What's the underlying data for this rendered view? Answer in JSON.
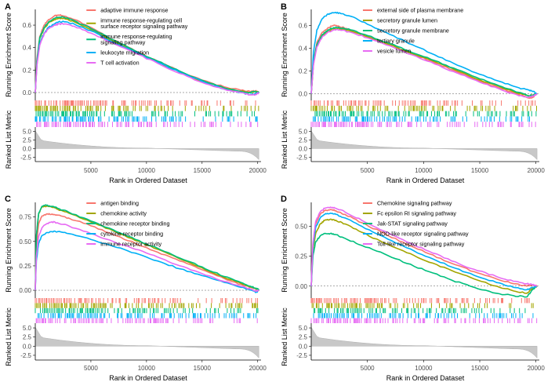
{
  "figure": {
    "colors": [
      "#F8766D",
      "#A3A500",
      "#00BF7D",
      "#00B0F6",
      "#E76BF3"
    ],
    "xlabel": "Rank in Ordered Dataset",
    "ylabel_top": "Running Enrichment Score",
    "ylabel_bottom": "Ranked List Metric",
    "x_ticks": [
      "5000",
      "10000",
      "15000",
      "20000"
    ],
    "metric_ticks": [
      "5.0",
      "2.5",
      "0.0",
      "-2.5"
    ]
  },
  "chart_data": [
    {
      "type": "line",
      "panel": "A",
      "xlim": [
        0,
        20300
      ],
      "ylim": [
        -0.07,
        0.74
      ],
      "yticks": [
        "0.0",
        "0.2",
        "0.4",
        "0.6"
      ],
      "legend_lines": [
        [
          "adaptive immune response"
        ],
        [
          "immune response-regulating cell",
          "surface receptor signaling pathway"
        ],
        [
          "immune response-regulating",
          "signaling pathway"
        ],
        [
          "leukocyte migration"
        ],
        [
          "T cell activation"
        ]
      ],
      "series": [
        {
          "name": "adaptive immune response",
          "x": [
            0,
            150,
            400,
            800,
            1200,
            1700,
            2100,
            2600,
            3500,
            5000,
            7000,
            9000,
            11000,
            13000,
            15000,
            17000,
            18500,
            19300,
            19800,
            20100
          ],
          "y": [
            0,
            0.3,
            0.5,
            0.6,
            0.65,
            0.68,
            0.69,
            0.68,
            0.65,
            0.58,
            0.47,
            0.37,
            0.28,
            0.19,
            0.11,
            0.05,
            0.02,
            0.01,
            0.015,
            0
          ]
        },
        {
          "name": "immune response-regulating cell surface receptor signaling pathway",
          "x": [
            0,
            150,
            400,
            800,
            1200,
            1700,
            2100,
            2600,
            3500,
            5000,
            7000,
            9000,
            11000,
            13000,
            15000,
            17000,
            18500,
            19300,
            19800,
            20100
          ],
          "y": [
            0,
            0.28,
            0.48,
            0.57,
            0.62,
            0.65,
            0.66,
            0.66,
            0.63,
            0.56,
            0.46,
            0.36,
            0.27,
            0.18,
            0.1,
            0.04,
            0.01,
            0.0,
            0.01,
            0
          ]
        },
        {
          "name": "immune response-regulating signaling pathway",
          "x": [
            0,
            150,
            400,
            800,
            1200,
            1700,
            2100,
            2600,
            3500,
            5000,
            7000,
            9000,
            11000,
            13000,
            15000,
            17000,
            18500,
            19300,
            19800,
            20100
          ],
          "y": [
            0,
            0.28,
            0.49,
            0.58,
            0.63,
            0.66,
            0.67,
            0.67,
            0.64,
            0.57,
            0.47,
            0.37,
            0.28,
            0.19,
            0.11,
            0.04,
            0.01,
            0.0,
            0.01,
            0
          ]
        },
        {
          "name": "leukocyte migration",
          "x": [
            0,
            150,
            400,
            800,
            1200,
            1700,
            2100,
            2600,
            3500,
            5000,
            7000,
            9000,
            11000,
            13000,
            15000,
            17000,
            18500,
            19300,
            19800,
            20100
          ],
          "y": [
            0,
            0.25,
            0.44,
            0.53,
            0.58,
            0.61,
            0.63,
            0.63,
            0.61,
            0.55,
            0.45,
            0.36,
            0.27,
            0.18,
            0.1,
            0.03,
            0.0,
            -0.02,
            -0.01,
            0
          ]
        },
        {
          "name": "T cell activation",
          "x": [
            0,
            150,
            400,
            800,
            1200,
            1700,
            2100,
            2600,
            3500,
            5000,
            7000,
            9000,
            11000,
            13000,
            15000,
            17000,
            18500,
            19300,
            19800,
            20100
          ],
          "y": [
            0,
            0.24,
            0.42,
            0.52,
            0.57,
            0.6,
            0.61,
            0.61,
            0.59,
            0.53,
            0.44,
            0.35,
            0.26,
            0.17,
            0.09,
            0.03,
            0.0,
            -0.02,
            -0.02,
            0
          ]
        }
      ]
    },
    {
      "type": "line",
      "panel": "B",
      "xlim": [
        0,
        20300
      ],
      "ylim": [
        -0.06,
        0.74
      ],
      "yticks": [
        "0.0",
        "0.2",
        "0.4",
        "0.6"
      ],
      "legend_lines": [
        [
          "external side of plasma membrane"
        ],
        [
          "secretory granule lumen"
        ],
        [
          "secretory granule membrane"
        ],
        [
          "tertiary granule"
        ],
        [
          "vesicle lumen"
        ]
      ],
      "series": [
        {
          "name": "external side of plasma membrane",
          "x": [
            0,
            200,
            500,
            1000,
            1500,
            2000,
            2500,
            3500,
            5000,
            7000,
            9000,
            11000,
            13000,
            15000,
            17000,
            18500,
            19400,
            19800,
            20100
          ],
          "y": [
            0,
            0.28,
            0.45,
            0.54,
            0.58,
            0.6,
            0.59,
            0.56,
            0.5,
            0.43,
            0.35,
            0.27,
            0.19,
            0.11,
            0.04,
            -0.01,
            -0.04,
            -0.03,
            0
          ]
        },
        {
          "name": "secretory granule lumen",
          "x": [
            0,
            200,
            500,
            1000,
            1500,
            2000,
            2500,
            3500,
            5000,
            7000,
            9000,
            11000,
            13000,
            15000,
            17000,
            18500,
            19400,
            19800,
            20100
          ],
          "y": [
            0,
            0.26,
            0.42,
            0.51,
            0.55,
            0.57,
            0.57,
            0.55,
            0.5,
            0.43,
            0.35,
            0.28,
            0.2,
            0.12,
            0.05,
            0.0,
            -0.02,
            -0.01,
            0
          ]
        },
        {
          "name": "secretory granule membrane",
          "x": [
            0,
            200,
            500,
            1000,
            1500,
            2000,
            2500,
            3500,
            5000,
            7000,
            9000,
            11000,
            13000,
            15000,
            17000,
            18500,
            19400,
            19800,
            20100
          ],
          "y": [
            0,
            0.27,
            0.43,
            0.52,
            0.56,
            0.58,
            0.58,
            0.56,
            0.51,
            0.44,
            0.36,
            0.29,
            0.21,
            0.13,
            0.06,
            0.01,
            -0.02,
            -0.01,
            0
          ]
        },
        {
          "name": "tertiary granule",
          "x": [
            0,
            200,
            500,
            1000,
            1500,
            2000,
            2500,
            3500,
            5000,
            7000,
            9000,
            11000,
            13000,
            15000,
            17000,
            18500,
            19400,
            19800,
            20100
          ],
          "y": [
            0,
            0.36,
            0.56,
            0.66,
            0.7,
            0.71,
            0.71,
            0.68,
            0.61,
            0.52,
            0.43,
            0.34,
            0.25,
            0.17,
            0.1,
            0.05,
            0.03,
            0.02,
            0
          ]
        },
        {
          "name": "vesicle lumen",
          "x": [
            0,
            200,
            500,
            1000,
            1500,
            2000,
            2500,
            3500,
            5000,
            7000,
            9000,
            11000,
            13000,
            15000,
            17000,
            18500,
            19400,
            19800,
            20100
          ],
          "y": [
            0,
            0.25,
            0.41,
            0.5,
            0.54,
            0.56,
            0.56,
            0.54,
            0.49,
            0.42,
            0.34,
            0.26,
            0.18,
            0.1,
            0.03,
            -0.02,
            -0.03,
            -0.02,
            0
          ]
        }
      ]
    },
    {
      "type": "line",
      "panel": "C",
      "xlim": [
        0,
        20300
      ],
      "ylim": [
        -0.08,
        0.9
      ],
      "yticks": [
        "0.00",
        "0.25",
        "0.50",
        "0.75"
      ],
      "legend_lines": [
        [
          "antigen binding"
        ],
        [
          "chemokine activity"
        ],
        [
          "chemokine receptor binding"
        ],
        [
          "cytokine receptor binding"
        ],
        [
          "immune receptor activity"
        ]
      ],
      "series": [
        {
          "name": "antigen binding",
          "x": [
            0,
            100,
            300,
            600,
            1000,
            1500,
            2000,
            3000,
            5000,
            7000,
            9000,
            11000,
            13000,
            15000,
            17000,
            18500,
            19400,
            19900,
            20100
          ],
          "y": [
            0,
            0.45,
            0.68,
            0.76,
            0.78,
            0.78,
            0.77,
            0.74,
            0.66,
            0.57,
            0.48,
            0.39,
            0.3,
            0.21,
            0.12,
            0.06,
            0.03,
            0.01,
            0
          ]
        },
        {
          "name": "chemokine activity",
          "x": [
            0,
            100,
            300,
            600,
            1000,
            1500,
            2000,
            3000,
            5000,
            7000,
            9000,
            11000,
            13000,
            15000,
            17000,
            18500,
            19400,
            19900,
            20100
          ],
          "y": [
            0,
            0.55,
            0.78,
            0.85,
            0.86,
            0.85,
            0.83,
            0.79,
            0.7,
            0.61,
            0.51,
            0.42,
            0.32,
            0.23,
            0.13,
            0.07,
            0.03,
            0.01,
            0
          ]
        },
        {
          "name": "chemokine receptor binding",
          "x": [
            0,
            100,
            300,
            600,
            1000,
            1500,
            2000,
            3000,
            5000,
            7000,
            9000,
            11000,
            13000,
            15000,
            17000,
            18500,
            19400,
            19900,
            20100
          ],
          "y": [
            0,
            0.56,
            0.79,
            0.86,
            0.87,
            0.86,
            0.84,
            0.8,
            0.71,
            0.62,
            0.52,
            0.43,
            0.33,
            0.24,
            0.14,
            0.08,
            0.04,
            0.02,
            0
          ]
        },
        {
          "name": "cytokine receptor binding",
          "x": [
            0,
            100,
            300,
            600,
            1000,
            1500,
            2000,
            3000,
            5000,
            7000,
            9000,
            11000,
            13000,
            15000,
            17000,
            18500,
            19400,
            19900,
            20100
          ],
          "y": [
            0,
            0.3,
            0.48,
            0.56,
            0.59,
            0.6,
            0.6,
            0.58,
            0.52,
            0.45,
            0.38,
            0.3,
            0.22,
            0.15,
            0.08,
            0.03,
            0.0,
            -0.02,
            0
          ]
        },
        {
          "name": "immune receptor activity",
          "x": [
            0,
            100,
            300,
            600,
            1000,
            1500,
            2000,
            3000,
            5000,
            7000,
            9000,
            11000,
            13000,
            15000,
            17000,
            18500,
            19400,
            19900,
            20100
          ],
          "y": [
            0,
            0.35,
            0.55,
            0.64,
            0.68,
            0.7,
            0.69,
            0.66,
            0.58,
            0.5,
            0.42,
            0.34,
            0.25,
            0.17,
            0.09,
            0.04,
            0.01,
            -0.01,
            0
          ]
        }
      ]
    },
    {
      "type": "line",
      "panel": "D",
      "xlim": [
        0,
        20300
      ],
      "ylim": [
        -0.1,
        0.7
      ],
      "yticks": [
        "0.00",
        "0.25",
        "0.50"
      ],
      "legend_lines": [
        [
          "Chemokine signaling pathway"
        ],
        [
          "Fc epsilon RI signaling pathway"
        ],
        [
          "Jak-STAT signaling pathway"
        ],
        [
          "NOD-like receptor signaling pathway"
        ],
        [
          "Toll-like receptor signaling pathway"
        ]
      ],
      "series": [
        {
          "name": "Chemokine signaling pathway",
          "x": [
            0,
            150,
            400,
            800,
            1200,
            1700,
            2200,
            3000,
            4500,
            6500,
            8500,
            10500,
            12500,
            14500,
            16500,
            18000,
            19200,
            19700,
            20100
          ],
          "y": [
            0,
            0.35,
            0.52,
            0.6,
            0.63,
            0.64,
            0.63,
            0.6,
            0.53,
            0.44,
            0.35,
            0.27,
            0.19,
            0.12,
            0.06,
            0.02,
            0.0,
            0.01,
            0
          ]
        },
        {
          "name": "Fc epsilon RI signaling pathway",
          "x": [
            0,
            150,
            400,
            800,
            1200,
            1700,
            2200,
            3000,
            4500,
            6500,
            8500,
            10500,
            12500,
            14500,
            16500,
            18000,
            19200,
            19700,
            20100
          ],
          "y": [
            0,
            0.3,
            0.44,
            0.52,
            0.55,
            0.56,
            0.55,
            0.52,
            0.45,
            0.36,
            0.28,
            0.2,
            0.13,
            0.06,
            0.0,
            -0.04,
            -0.06,
            -0.02,
            0
          ]
        },
        {
          "name": "Jak-STAT signaling pathway",
          "x": [
            0,
            150,
            400,
            800,
            1200,
            1700,
            2200,
            3000,
            4500,
            6500,
            8500,
            10500,
            12500,
            14500,
            16500,
            18000,
            19200,
            19700,
            20100
          ],
          "y": [
            0,
            0.25,
            0.37,
            0.42,
            0.44,
            0.44,
            0.43,
            0.4,
            0.34,
            0.27,
            0.19,
            0.12,
            0.05,
            -0.01,
            -0.06,
            -0.08,
            -0.09,
            -0.03,
            0
          ]
        },
        {
          "name": "NOD-like receptor signaling pathway",
          "x": [
            0,
            150,
            400,
            800,
            1200,
            1700,
            2200,
            3000,
            4500,
            6500,
            8500,
            10500,
            12500,
            14500,
            16500,
            18000,
            19200,
            19700,
            20100
          ],
          "y": [
            0,
            0.33,
            0.49,
            0.57,
            0.6,
            0.61,
            0.6,
            0.57,
            0.5,
            0.41,
            0.32,
            0.24,
            0.16,
            0.09,
            0.03,
            -0.01,
            -0.03,
            -0.01,
            0
          ]
        },
        {
          "name": "Toll-like receptor signaling pathway",
          "x": [
            0,
            150,
            400,
            800,
            1200,
            1700,
            2200,
            3000,
            4500,
            6500,
            8500,
            10500,
            12500,
            14500,
            16500,
            18000,
            19200,
            19700,
            20100
          ],
          "y": [
            0,
            0.36,
            0.54,
            0.62,
            0.65,
            0.66,
            0.65,
            0.62,
            0.55,
            0.46,
            0.37,
            0.29,
            0.21,
            0.14,
            0.08,
            0.04,
            0.02,
            0.01,
            0
          ]
        }
      ]
    }
  ]
}
